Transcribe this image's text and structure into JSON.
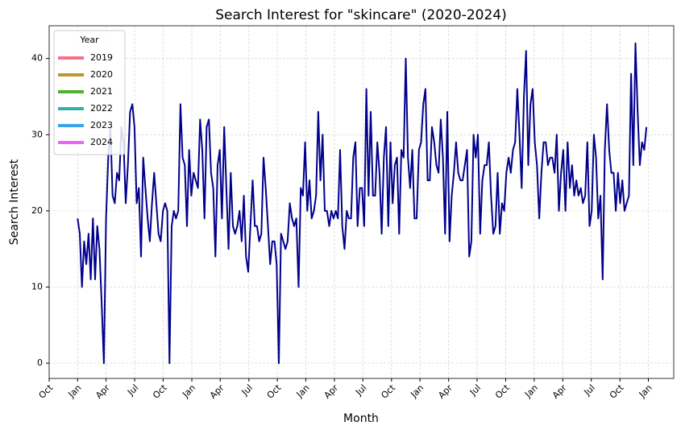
{
  "chart_data": {
    "type": "line",
    "title": "Search Interest for \"skincare\" (2020-2024)",
    "x_label": "Month",
    "y_label": "Search Interest",
    "color": "#00008b",
    "values": [
      19,
      17,
      10,
      16,
      13,
      17,
      11,
      19,
      11,
      18,
      15,
      8,
      0,
      19,
      27,
      31,
      22,
      21,
      25,
      24,
      31,
      29,
      21,
      26,
      33,
      34,
      31,
      21,
      23,
      14,
      27,
      23,
      19,
      16,
      21,
      25,
      21,
      17,
      16,
      20,
      21,
      20,
      0,
      18,
      20,
      19,
      20,
      34,
      27,
      26,
      18,
      28,
      22,
      25,
      24,
      23,
      32,
      28,
      19,
      31,
      32,
      25,
      23,
      14,
      26,
      28,
      19,
      31,
      23,
      15,
      25,
      18,
      17,
      18,
      20,
      16,
      22,
      14,
      12,
      18,
      24,
      18,
      18,
      16,
      17,
      27,
      23,
      18,
      13,
      16,
      16,
      13,
      0,
      17,
      16,
      15,
      16,
      21,
      19,
      18,
      19,
      10,
      23,
      22,
      29,
      20,
      24,
      19,
      20,
      22,
      33,
      24,
      30,
      20,
      20,
      18,
      20,
      19,
      20,
      19,
      28,
      18,
      15,
      20,
      19,
      19,
      27,
      29,
      18,
      23,
      23,
      18,
      36,
      22,
      33,
      22,
      22,
      29,
      25,
      17,
      27,
      31,
      18,
      29,
      21,
      26,
      27,
      17,
      28,
      27,
      40,
      27,
      23,
      28,
      19,
      19,
      28,
      29,
      34,
      36,
      24,
      24,
      31,
      29,
      26,
      25,
      32,
      27,
      17,
      33,
      16,
      22,
      25,
      29,
      25,
      24,
      24,
      26,
      28,
      14,
      16,
      30,
      27,
      30,
      17,
      24,
      26,
      26,
      29,
      22,
      17,
      18,
      25,
      17,
      21,
      20,
      25,
      27,
      25,
      28,
      29,
      36,
      30,
      23,
      35,
      41,
      26,
      34,
      36,
      29,
      26,
      19,
      25,
      29,
      29,
      26,
      27,
      27,
      25,
      30,
      20,
      25,
      28,
      20,
      29,
      23,
      26,
      22,
      24,
      22,
      23,
      21,
      22,
      29,
      18,
      20,
      30,
      27,
      19,
      22,
      11,
      28,
      34,
      28,
      25,
      25,
      20,
      25,
      21,
      24,
      20,
      21,
      22,
      38,
      26,
      42,
      33,
      26,
      29,
      28,
      31
    ],
    "xlim": [
      -13,
      272.5
    ],
    "xticks": [
      {
        "value": -13,
        "label": "Oct",
        "color": "#f77189"
      },
      {
        "value": 0,
        "label": "Jan",
        "color": "#bb9832"
      },
      {
        "value": 13,
        "label": "Apr",
        "color": "#bb9832"
      },
      {
        "value": 26.1,
        "label": "Jul",
        "color": "#bb9832"
      },
      {
        "value": 39.1,
        "label": "Oct",
        "color": "#bb9832"
      },
      {
        "value": 52.2,
        "label": "Jan",
        "color": "#50b131"
      },
      {
        "value": 65.2,
        "label": "Apr",
        "color": "#50b131"
      },
      {
        "value": 78.3,
        "label": "Jul",
        "color": "#50b131"
      },
      {
        "value": 91.3,
        "label": "Oct",
        "color": "#50b131"
      },
      {
        "value": 104.3,
        "label": "Jan",
        "color": "#36ada4"
      },
      {
        "value": 117.4,
        "label": "Apr",
        "color": "#36ada4"
      },
      {
        "value": 130.4,
        "label": "Jul",
        "color": "#36ada4"
      },
      {
        "value": 143.5,
        "label": "Oct",
        "color": "#36ada4"
      },
      {
        "value": 156.5,
        "label": "Jan",
        "color": "#3ba3ec"
      },
      {
        "value": 169.6,
        "label": "Apr",
        "color": "#3ba3ec"
      },
      {
        "value": 182.6,
        "label": "Jul",
        "color": "#3ba3ec"
      },
      {
        "value": 195.7,
        "label": "Oct",
        "color": "#3ba3ec"
      },
      {
        "value": 208.7,
        "label": "Jan",
        "color": "#e866f4"
      },
      {
        "value": 221.8,
        "label": "Apr",
        "color": "#e866f4"
      },
      {
        "value": 234.8,
        "label": "Jul",
        "color": "#e866f4"
      },
      {
        "value": 247.9,
        "label": "Oct",
        "color": "#e866f4"
      },
      {
        "value": 260.9,
        "label": "Jan",
        "color": "#000000"
      }
    ],
    "ylim": [
      -2,
      44.3
    ],
    "yticks": [
      0,
      10,
      20,
      30,
      40
    ],
    "grid": true,
    "legend": {
      "title": "Year",
      "position": "upper left",
      "entries": [
        {
          "name": "2019",
          "color": "#f77189"
        },
        {
          "name": "2020",
          "color": "#bb9832"
        },
        {
          "name": "2021",
          "color": "#50b131"
        },
        {
          "name": "2022",
          "color": "#36ada4"
        },
        {
          "name": "2023",
          "color": "#3ba3ec"
        },
        {
          "name": "2024",
          "color": "#e866f4"
        }
      ]
    }
  }
}
